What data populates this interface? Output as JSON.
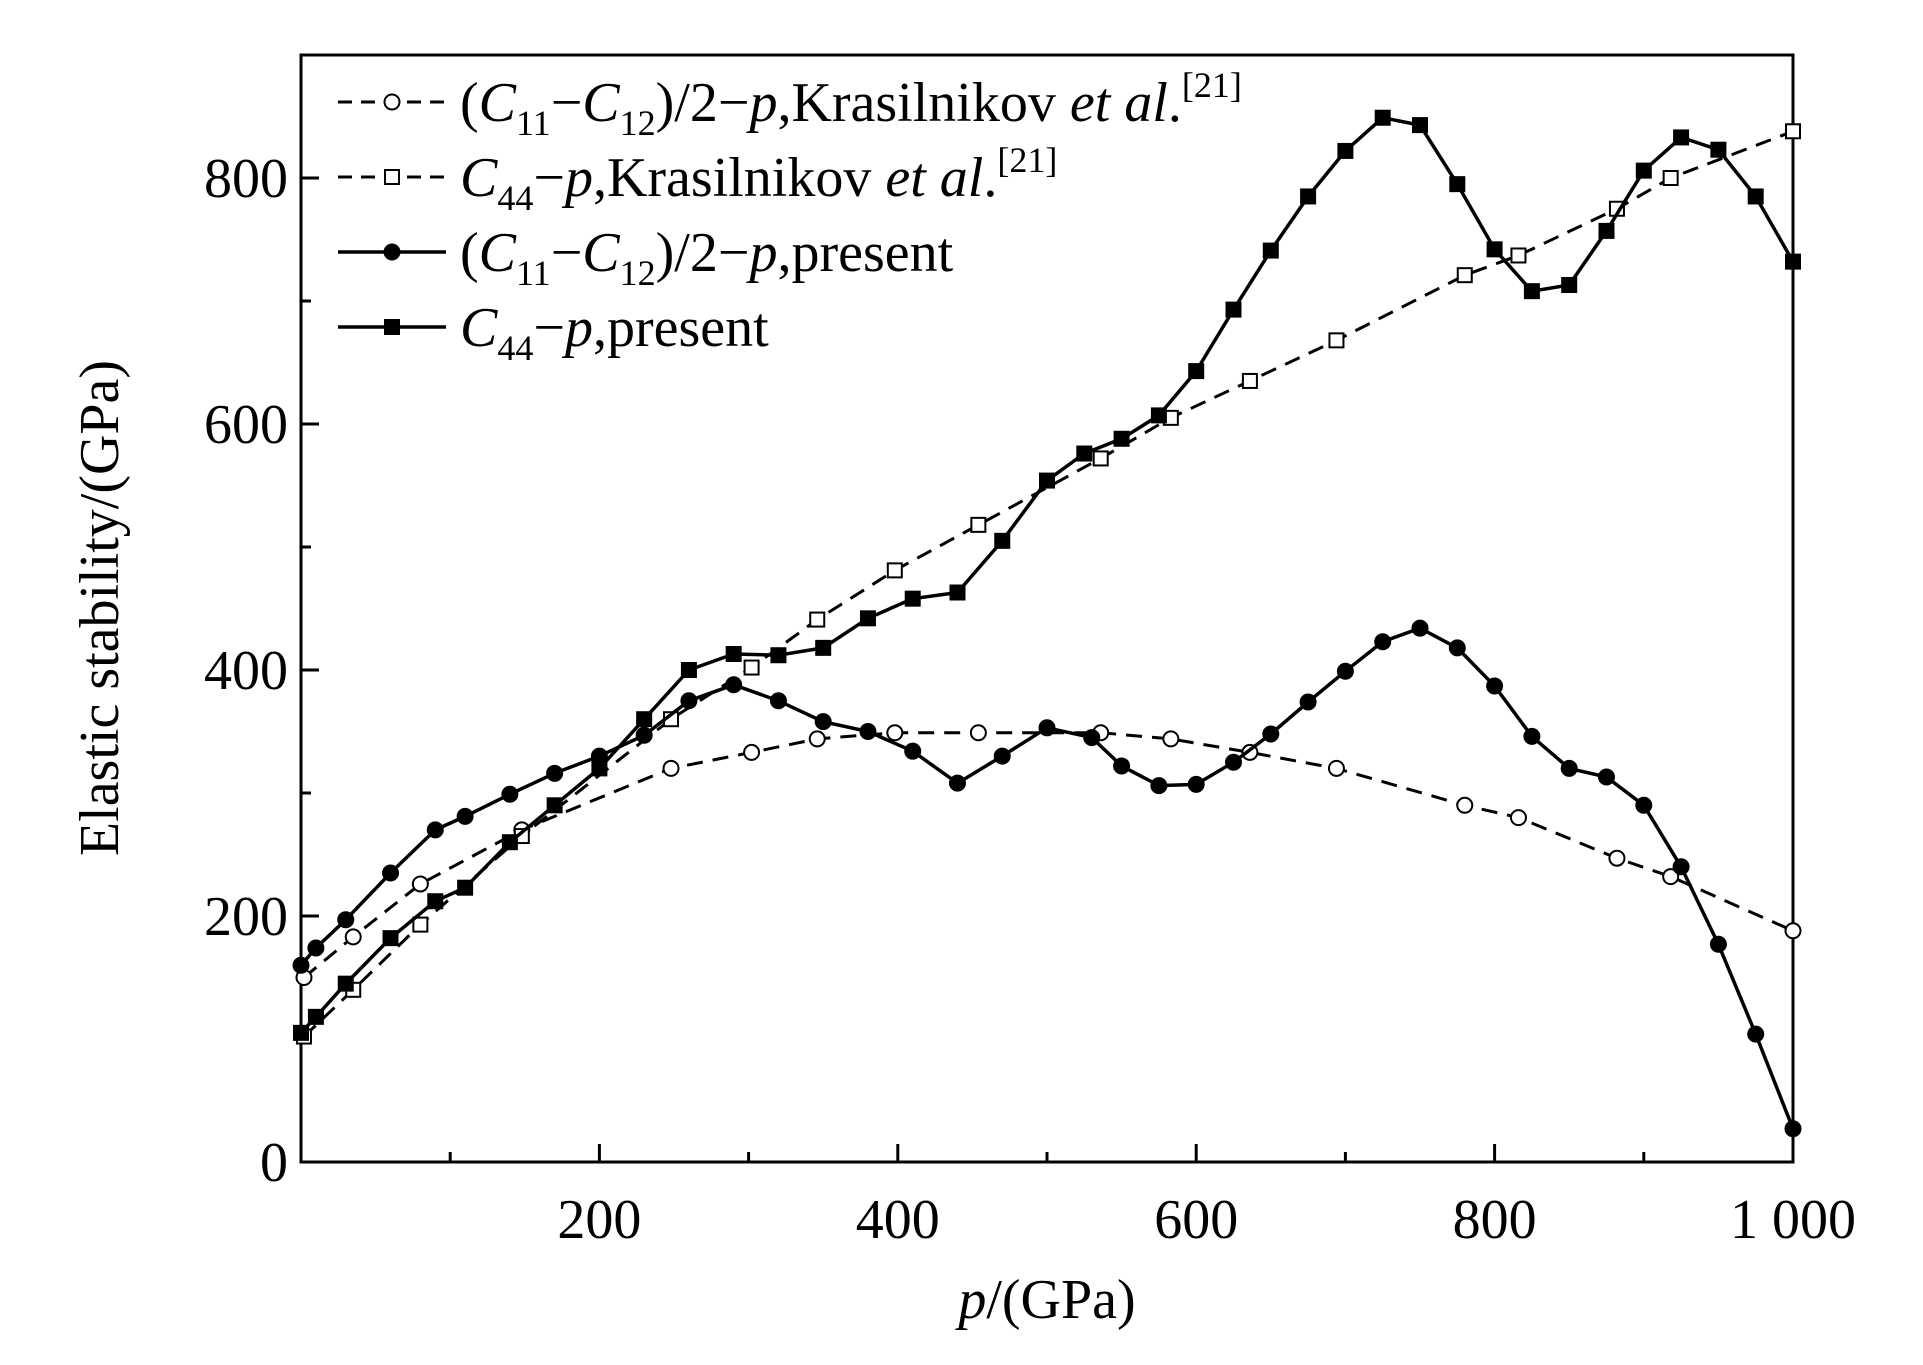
{
  "chart_data": {
    "type": "line",
    "xlabel": {
      "italic": "p",
      "rest": "/(GPa)"
    },
    "ylabel": "Elastic stability/(GPa)",
    "xlim": [
      0,
      1000
    ],
    "ylim": [
      0,
      900
    ],
    "xticks": [
      200,
      400,
      600,
      800,
      1000
    ],
    "xtick_labels": [
      "200",
      "400",
      "600",
      "800",
      "1 000"
    ],
    "yticks": [
      0,
      200,
      400,
      600,
      800
    ],
    "ytick_labels": [
      "0",
      "200",
      "400",
      "600",
      "800"
    ],
    "grid": false,
    "legend_position": "top-left",
    "series": [
      {
        "legend": {
          "open": "(",
          "c1": "C",
          "s1": "11",
          "minus": "−",
          "c2": "C",
          "s2": "12",
          "mid": ")/2−",
          "p": "p",
          "tail": ",Krasilnikov ",
          "etal": "et al",
          "dot": ".",
          "ref": "[21]"
        },
        "style": "dashed",
        "marker": "circle-open",
        "points": [
          [
            2,
            150
          ],
          [
            35,
            183
          ],
          [
            80,
            226
          ],
          [
            148,
            270
          ],
          [
            248,
            320
          ],
          [
            302,
            333
          ],
          [
            346,
            344
          ],
          [
            398,
            349
          ],
          [
            454,
            349
          ],
          [
            536,
            349
          ],
          [
            583,
            344
          ],
          [
            636,
            333
          ],
          [
            694,
            320
          ],
          [
            780,
            290
          ],
          [
            816,
            280
          ],
          [
            882,
            247
          ],
          [
            918,
            232
          ],
          [
            1000,
            188
          ]
        ]
      },
      {
        "legend": {
          "c1": "C",
          "s1": "44",
          "mid": "−",
          "p": "p",
          "tail": ",Krasilnikov ",
          "etal": "et al",
          "dot": ".",
          "ref": "[21]"
        },
        "style": "dashed",
        "marker": "square-open",
        "points": [
          [
            2,
            102
          ],
          [
            35,
            140
          ],
          [
            80,
            193
          ],
          [
            148,
            265
          ],
          [
            248,
            360
          ],
          [
            302,
            402
          ],
          [
            346,
            441
          ],
          [
            398,
            481
          ],
          [
            454,
            518
          ],
          [
            536,
            572
          ],
          [
            583,
            605
          ],
          [
            636,
            635
          ],
          [
            694,
            668
          ],
          [
            780,
            721
          ],
          [
            816,
            737
          ],
          [
            882,
            775
          ],
          [
            918,
            800
          ],
          [
            1000,
            838
          ]
        ]
      },
      {
        "legend": {
          "open": "(",
          "c1": "C",
          "s1": "11",
          "minus": "−",
          "c2": "C",
          "s2": "12",
          "mid": ")/2−",
          "p": "p",
          "tail": ",present"
        },
        "style": "solid",
        "marker": "circle-filled",
        "points": [
          [
            0,
            160
          ],
          [
            10,
            174
          ],
          [
            30,
            197
          ],
          [
            60,
            235
          ],
          [
            90,
            270
          ],
          [
            110,
            281
          ],
          [
            140,
            299
          ],
          [
            170,
            316
          ],
          [
            200,
            330
          ],
          [
            230,
            347
          ],
          [
            260,
            375
          ],
          [
            290,
            388
          ],
          [
            320,
            375
          ],
          [
            350,
            358
          ],
          [
            380,
            350
          ],
          [
            410,
            334
          ],
          [
            440,
            308
          ],
          [
            470,
            330
          ],
          [
            500,
            353
          ],
          [
            530,
            345
          ],
          [
            550,
            322
          ],
          [
            575,
            306
          ],
          [
            600,
            307
          ],
          [
            625,
            325
          ],
          [
            650,
            348
          ],
          [
            675,
            374
          ],
          [
            700,
            399
          ],
          [
            725,
            423
          ],
          [
            750,
            434
          ],
          [
            775,
            418
          ],
          [
            800,
            387
          ],
          [
            825,
            346
          ],
          [
            850,
            320
          ],
          [
            875,
            313
          ],
          [
            900,
            290
          ],
          [
            925,
            240
          ],
          [
            950,
            177
          ],
          [
            975,
            104
          ],
          [
            1000,
            27
          ]
        ]
      },
      {
        "legend": {
          "c1": "C",
          "s1": "44",
          "mid": "−",
          "p": "p",
          "tail": ",present"
        },
        "style": "solid",
        "marker": "square-filled",
        "points": [
          [
            0,
            105
          ],
          [
            10,
            118
          ],
          [
            30,
            145
          ],
          [
            60,
            182
          ],
          [
            90,
            212
          ],
          [
            110,
            223
          ],
          [
            140,
            260
          ],
          [
            170,
            290
          ],
          [
            200,
            320
          ],
          [
            230,
            360
          ],
          [
            260,
            400
          ],
          [
            290,
            413
          ],
          [
            320,
            412
          ],
          [
            350,
            418
          ],
          [
            380,
            442
          ],
          [
            410,
            458
          ],
          [
            440,
            463
          ],
          [
            470,
            505
          ],
          [
            500,
            554
          ],
          [
            525,
            576
          ],
          [
            550,
            588
          ],
          [
            575,
            607
          ],
          [
            600,
            643
          ],
          [
            625,
            693
          ],
          [
            650,
            741
          ],
          [
            675,
            785
          ],
          [
            700,
            822
          ],
          [
            725,
            849
          ],
          [
            750,
            843
          ],
          [
            775,
            795
          ],
          [
            800,
            742
          ],
          [
            825,
            708
          ],
          [
            850,
            713
          ],
          [
            875,
            757
          ],
          [
            900,
            806
          ],
          [
            925,
            833
          ],
          [
            950,
            823
          ],
          [
            975,
            785
          ],
          [
            1000,
            732
          ]
        ]
      }
    ]
  }
}
